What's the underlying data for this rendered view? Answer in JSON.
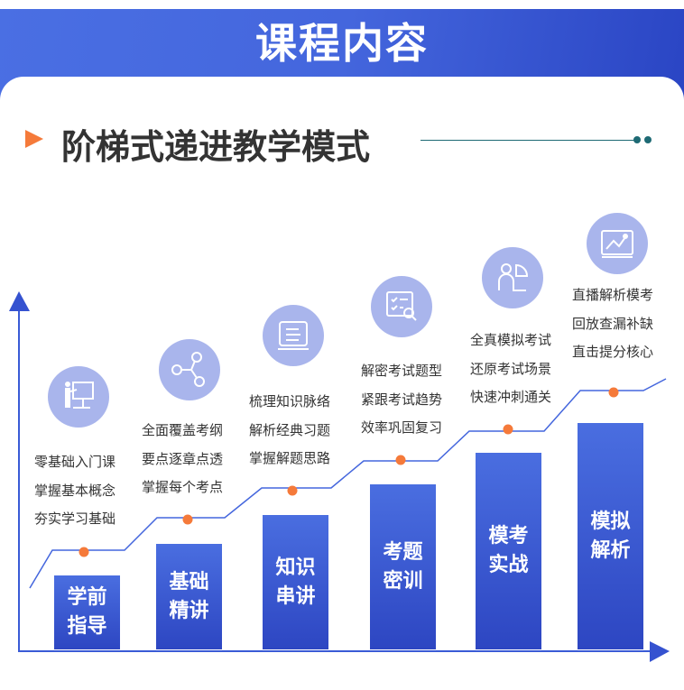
{
  "header": {
    "title": "课程内容"
  },
  "subtitle": "阶梯式递进教学模式",
  "colors": {
    "accent": "#4466dd",
    "dot": "#f57a3a",
    "icon_bg": "#a9b5ec",
    "divider": "#1e6a74"
  },
  "steps": [
    {
      "label": "学前指导",
      "icon": "presentation-icon",
      "lines": [
        "零基础入门课",
        "掌握基本概念",
        "夯实学习基础"
      ]
    },
    {
      "label": "基础精讲",
      "icon": "share-nodes-icon",
      "lines": [
        "全面覆盖考纲",
        "要点逐章点透",
        "掌握每个考点"
      ]
    },
    {
      "label": "知识串讲",
      "icon": "document-screen-icon",
      "lines": [
        "梳理知识脉络",
        "解析经典习题",
        "掌握解题思路"
      ]
    },
    {
      "label": "考题密训",
      "icon": "checklist-search-icon",
      "lines": [
        "解密考试题型",
        "紧跟考试趋势",
        "效率巩固复习"
      ]
    },
    {
      "label": "模考实战",
      "icon": "user-chart-icon",
      "lines": [
        "全真模拟考试",
        "还原考试场景",
        "快速冲刺通关"
      ]
    },
    {
      "label": "模拟解析",
      "icon": "line-chart-icon",
      "lines": [
        "直播解析模考",
        "回放查漏补缺",
        "直击提分核心"
      ]
    }
  ]
}
